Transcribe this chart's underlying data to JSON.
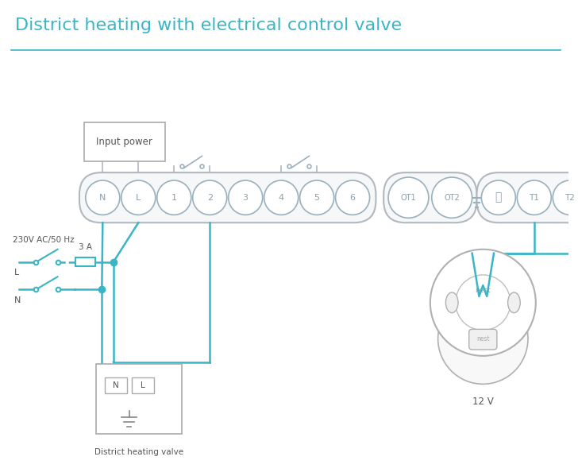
{
  "title": "District heating with electrical control valve",
  "title_color": "#3ab5c6",
  "title_fontsize": 16,
  "bg_color": "#ffffff",
  "line_color": "#3ab5c6",
  "box_color": "#aaaaaa",
  "terminal_color": "#aaaaaa",
  "text_color": "#555555",
  "dashed_color": "#3ab5c6",
  "terminal_labels": [
    "N",
    "L",
    "1",
    "2",
    "3",
    "4",
    "5",
    "6"
  ],
  "terminal_labels2": [
    "OT1",
    "OT2",
    "T1",
    "T2"
  ],
  "notes": {
    "label_230v": "230V AC/50 Hz",
    "label_L": "L",
    "label_N": "N",
    "label_3A": "3 A",
    "label_valve": "District heating valve",
    "label_12v": "12 V",
    "label_nest": "nest",
    "label_input_power": "Input power"
  }
}
